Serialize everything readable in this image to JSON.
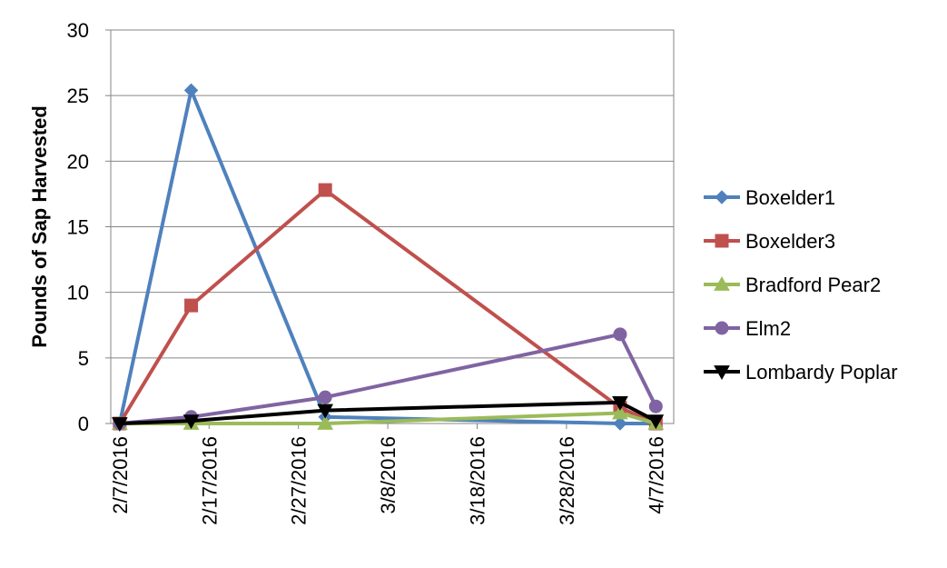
{
  "chart_data": {
    "type": "line",
    "title": "",
    "xlabel": "",
    "ylabel": "Pounds of Sap Harvested",
    "ylim": [
      0,
      30
    ],
    "yticks": [
      "0",
      "5",
      "10",
      "15",
      "20",
      "25",
      "30"
    ],
    "xlim": [
      "2016-02-06",
      "2016-04-09"
    ],
    "xtick_dates": [
      "2016-02-07",
      "2016-02-17",
      "2016-02-27",
      "2016-03-08",
      "2016-03-18",
      "2016-03-28",
      "2016-04-07"
    ],
    "xticks": [
      "2/7/2016",
      "2/17/2016",
      "2/27/2016",
      "3/8/2016",
      "3/18/2016",
      "3/28/2016",
      "4/7/2016"
    ],
    "grid": "horizontal",
    "legend_position": "right",
    "series": [
      {
        "name": "Boxelder1",
        "color": "#4F81BD",
        "marker": "diamond",
        "points": [
          [
            "2016-02-07",
            0
          ],
          [
            "2016-02-15",
            25.4
          ],
          [
            "2016-03-01",
            0.5
          ],
          [
            "2016-04-03",
            0
          ],
          [
            "2016-04-07",
            0
          ]
        ]
      },
      {
        "name": "Boxelder3",
        "color": "#C0504D",
        "marker": "square",
        "points": [
          [
            "2016-02-07",
            0
          ],
          [
            "2016-02-15",
            9
          ],
          [
            "2016-03-01",
            17.8
          ],
          [
            "2016-04-03",
            1.2
          ],
          [
            "2016-04-07",
            0
          ]
        ]
      },
      {
        "name": "Bradford Pear2",
        "color": "#9BBB59",
        "marker": "triangle-up",
        "points": [
          [
            "2016-02-07",
            0
          ],
          [
            "2016-02-15",
            0
          ],
          [
            "2016-03-01",
            0
          ],
          [
            "2016-04-03",
            0.8
          ],
          [
            "2016-04-07",
            0
          ]
        ]
      },
      {
        "name": "Elm2",
        "color": "#8064A2",
        "marker": "circle",
        "points": [
          [
            "2016-02-07",
            0
          ],
          [
            "2016-02-15",
            0.5
          ],
          [
            "2016-03-01",
            2
          ],
          [
            "2016-04-03",
            6.8
          ],
          [
            "2016-04-07",
            1.3
          ]
        ]
      },
      {
        "name": "Lombardy Poplar",
        "color": "#000000",
        "marker": "triangle-down",
        "points": [
          [
            "2016-02-07",
            0
          ],
          [
            "2016-02-15",
            0.2
          ],
          [
            "2016-03-01",
            1
          ],
          [
            "2016-04-03",
            1.6
          ],
          [
            "2016-04-07",
            0.2
          ]
        ]
      }
    ]
  }
}
